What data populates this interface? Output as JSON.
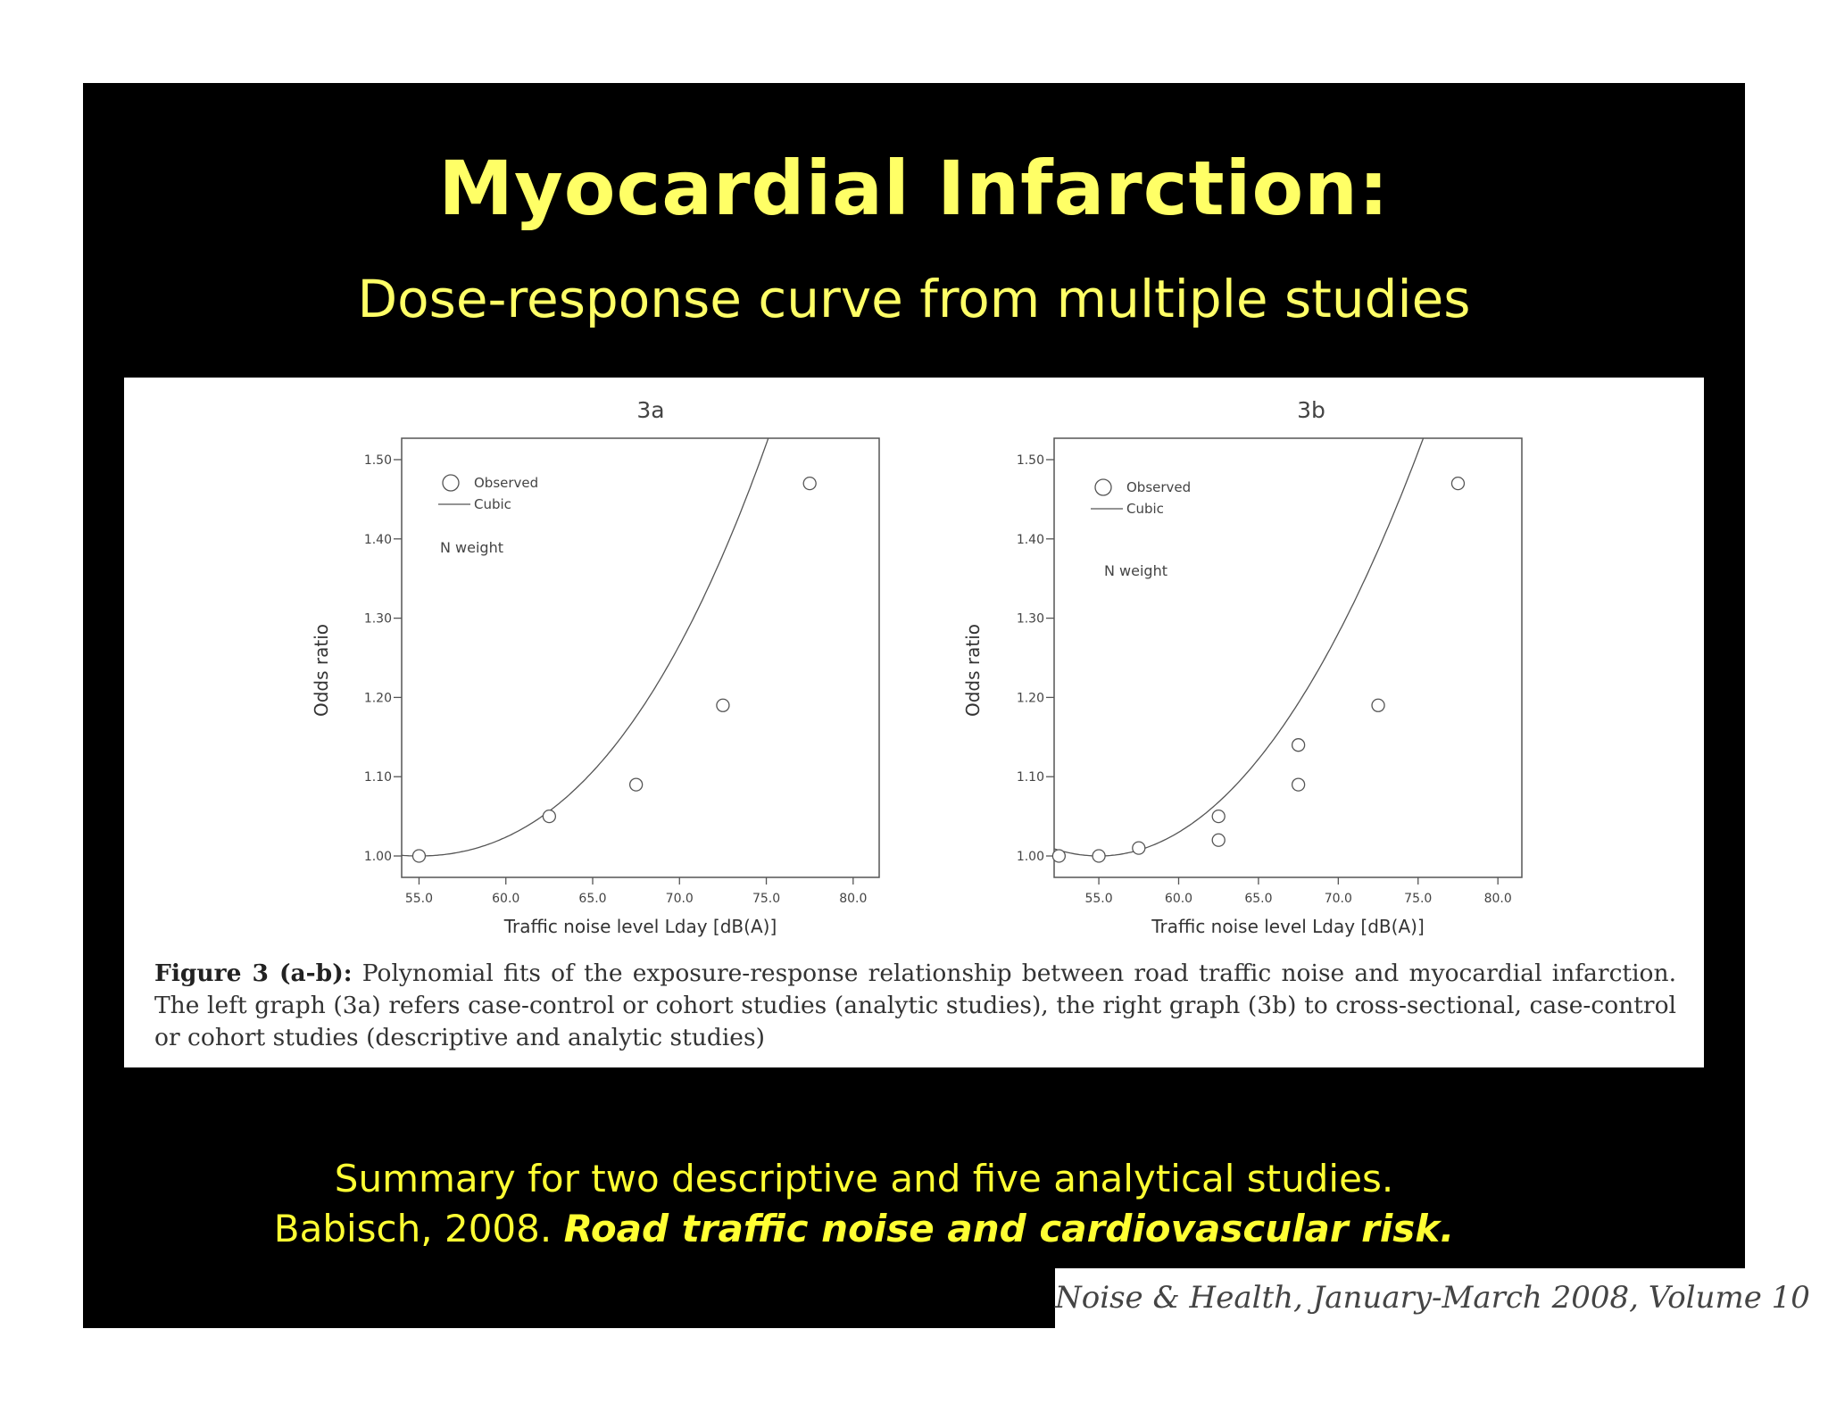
{
  "slide": {
    "title": "Myocardial Infarction:",
    "subtitle": "Dose-response curve from multiple studies",
    "background": "#000000",
    "accent": "#ffff66"
  },
  "caption": {
    "label": "Figure 3 (a-b):",
    "text": "Polynomial fits of the exposure-response relationship between road traffic noise and myocardial infarction. The left graph (3a) refers case-control or cohort studies (analytic studies), the right graph (3b) to cross-sectional, case-control or cohort studies (descriptive and analytic studies)"
  },
  "summary": {
    "line1": "Summary for two descriptive and five analytical studies.",
    "line2_prefix": "Babisch, 2008.",
    "line2_title": "Road traffic noise and cardiovascular risk."
  },
  "journal": "Noise & Health, January-March 2008, Volume 10",
  "chart_data": [
    {
      "type": "scatter",
      "title": "3a",
      "xlabel": "Traffic noise level Lday [dB(A)]",
      "ylabel": "Odds ratio",
      "xlim": [
        54.0,
        81.5
      ],
      "ylim": [
        0.973,
        1.527
      ],
      "xticks": [
        "55.0",
        "60.0",
        "65.0",
        "70.0",
        "75.0",
        "80.0"
      ],
      "yticks": [
        "1.00",
        "1.10",
        "1.20",
        "1.30",
        "1.40",
        "1.50"
      ],
      "legend": [
        "Observed",
        "Cubic"
      ],
      "annotation": "N weight",
      "series": [
        {
          "name": "Observed",
          "x": [
            55.0,
            62.5,
            67.5,
            72.5,
            77.5
          ],
          "y": [
            1.0,
            1.05,
            1.09,
            1.19,
            1.47
          ]
        },
        {
          "name": "Cubic",
          "curve": {
            "x0": 55.0,
            "a": 0.00083,
            "b": 2.35e-05
          }
        }
      ]
    },
    {
      "type": "scatter",
      "title": "3b",
      "xlabel": "Traffic noise level Lday [dB(A)]",
      "ylabel": "Odds ratio",
      "xlim": [
        52.2,
        81.5
      ],
      "ylim": [
        0.973,
        1.527
      ],
      "xticks": [
        "55.0",
        "60.0",
        "65.0",
        "70.0",
        "75.0",
        "80.0"
      ],
      "yticks": [
        "1.00",
        "1.10",
        "1.20",
        "1.30",
        "1.40",
        "1.50"
      ],
      "legend": [
        "Observed",
        "Cubic"
      ],
      "annotation": "N weight",
      "series": [
        {
          "name": "Observed",
          "x": [
            52.5,
            55.0,
            57.5,
            62.5,
            62.5,
            67.5,
            67.5,
            72.5,
            77.5
          ],
          "y": [
            1.0,
            1.0,
            1.01,
            1.05,
            1.02,
            1.14,
            1.09,
            1.19,
            1.47
          ]
        },
        {
          "name": "Cubic",
          "curve": {
            "x0": 55.0,
            "a": 0.00117,
            "b": 5.2e-06
          }
        }
      ]
    }
  ]
}
